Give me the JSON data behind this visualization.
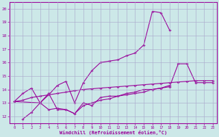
{
  "line1_x": [
    0,
    1,
    2,
    3,
    4,
    5,
    6,
    7,
    8,
    9,
    10,
    11,
    12,
    13,
    14,
    15,
    16,
    17,
    18
  ],
  "line1_y": [
    13.1,
    13.7,
    14.1,
    13.0,
    13.6,
    14.3,
    14.6,
    13.0,
    14.5,
    15.4,
    16.0,
    16.1,
    16.2,
    16.5,
    16.7,
    17.3,
    19.8,
    19.7,
    18.4
  ],
  "line2_x": [
    0,
    1,
    2,
    3,
    4,
    5,
    6,
    7,
    8,
    9,
    10,
    11,
    12,
    13,
    14,
    15,
    16,
    17,
    18,
    19,
    20,
    21,
    22,
    23
  ],
  "line2_y": [
    13.1,
    13.2,
    13.4,
    13.5,
    13.6,
    13.7,
    13.8,
    13.9,
    14.0,
    14.05,
    14.1,
    14.15,
    14.2,
    14.25,
    14.3,
    14.35,
    14.4,
    14.45,
    14.5,
    14.55,
    14.6,
    14.65,
    14.65,
    14.65
  ],
  "line3_x": [
    0,
    3,
    4,
    5,
    6,
    7,
    8,
    9,
    10,
    11,
    12,
    13,
    14,
    15,
    16,
    17,
    18,
    19,
    20,
    21,
    22,
    23
  ],
  "line3_y": [
    13.1,
    13.0,
    13.7,
    12.5,
    12.5,
    12.2,
    13.0,
    12.8,
    13.4,
    13.5,
    13.5,
    13.7,
    13.8,
    14.0,
    14.0,
    14.1,
    14.2,
    15.9,
    15.9,
    14.5,
    14.5,
    14.5
  ],
  "line4_x": [
    1,
    2,
    3,
    4,
    5,
    6,
    7,
    8,
    9,
    10,
    11,
    12,
    13,
    14,
    15,
    16,
    17,
    18
  ],
  "line4_y": [
    11.8,
    12.3,
    13.0,
    12.5,
    12.6,
    12.5,
    12.2,
    12.8,
    13.0,
    13.2,
    13.3,
    13.5,
    13.6,
    13.7,
    13.8,
    14.0,
    14.1,
    14.3
  ],
  "color": "#990099",
  "bg_color": "#cce8e8",
  "grid_color": "#aaaacc",
  "xlabel": "Windchill (Refroidissement éolien,°C)",
  "ylim": [
    11.5,
    20.5
  ],
  "xlim": [
    -0.5,
    23.5
  ],
  "yticks": [
    12,
    13,
    14,
    15,
    16,
    17,
    18,
    19,
    20
  ],
  "xticks": [
    0,
    1,
    2,
    3,
    4,
    5,
    6,
    7,
    8,
    9,
    10,
    11,
    12,
    13,
    14,
    15,
    16,
    17,
    18,
    19,
    20,
    21,
    22,
    23
  ]
}
